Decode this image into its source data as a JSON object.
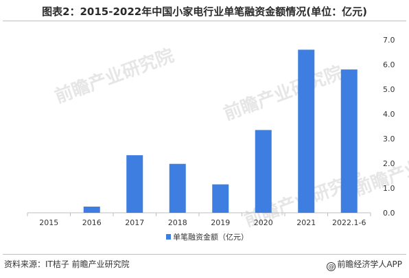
{
  "title": "图表2：2015-2022年中国小家电行业单笔融资金额情况(单位：亿元)",
  "source_text": "资料来源：IT桔子 前瞻产业研究院",
  "brand_text": "前瞻经济学人APP",
  "brand_icon": "at-sign-icon",
  "watermark_text": "前瞻产业研究院",
  "colors": {
    "bar": "#3d7ee0",
    "grid": "#d9d9d9",
    "axis": "#bfbfbf"
  },
  "chart_data": {
    "type": "bar",
    "categories": [
      "2015",
      "2016",
      "2017",
      "2018",
      "2019",
      "2020",
      "2021",
      "2022.1-6"
    ],
    "series": [
      {
        "name": "单笔融资金额（亿元）",
        "values": [
          0.0,
          0.25,
          2.33,
          1.98,
          1.15,
          3.35,
          6.6,
          5.8
        ]
      }
    ],
    "yaxis_position": "right",
    "ylim": [
      0,
      7
    ],
    "yticks": [
      "0.0",
      "1.0",
      "2.0",
      "3.0",
      "4.0",
      "5.0",
      "6.0",
      "7.0"
    ],
    "grid": false,
    "legend_position": "bottom-center"
  }
}
